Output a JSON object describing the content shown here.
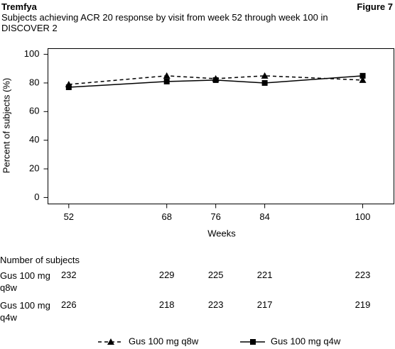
{
  "header": {
    "brand": "Tremfya",
    "figure": "Figure 7"
  },
  "chart_data": {
    "type": "line",
    "title": "Subjects achieving ACR 20 response by visit from week 52 through week 100 in DISCOVER 2",
    "x_label": "Weeks",
    "y_label": "Percent of subjects (%)",
    "x": [
      52,
      68,
      76,
      84,
      100
    ],
    "series": [
      {
        "name": "Gus 100 mg q8w",
        "color": "#000000",
        "marker": "triangle",
        "dashed": true,
        "values": [
          79,
          85,
          83,
          85,
          82
        ]
      },
      {
        "name": "Gus 100 mg q4w",
        "color": "#000000",
        "marker": "square",
        "dashed": false,
        "values": [
          77,
          81,
          82,
          80,
          85
        ]
      }
    ],
    "xlim": [
      48.6,
      105.1
    ],
    "xticks": [
      52,
      68,
      76,
      84,
      100
    ],
    "ylim": [
      -4.5,
      104
    ],
    "yticks": [
      0,
      20,
      40,
      60,
      80,
      100
    ],
    "grid": false,
    "legend": "bottom"
  },
  "subjects_table": {
    "title": "Number of subjects",
    "rows": [
      {
        "label": "Gus 100 mg q8w",
        "values": [
          232,
          229,
          225,
          221,
          223
        ]
      },
      {
        "label": "Gus 100 mg q4w",
        "values": [
          226,
          218,
          223,
          217,
          219
        ]
      }
    ]
  }
}
